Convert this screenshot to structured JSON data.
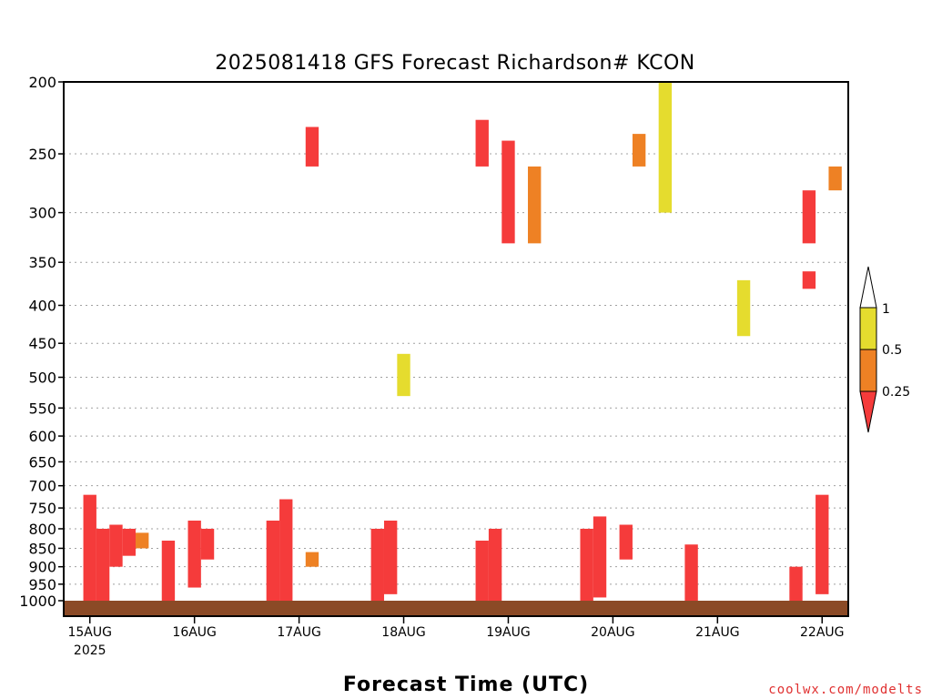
{
  "chart_data": {
    "type": "heatmap",
    "title": "2025081418 GFS Forecast Richardson# KCON",
    "xlabel": "Forecast Time (UTC)",
    "ylabel": "",
    "x_axis": {
      "range": [
        "2025-08-14T18:00",
        "2025-08-22T06:00"
      ],
      "ticks": [
        {
          "date": "2025-08-15T00:00",
          "label": "15AUG",
          "sublabel": "2025"
        },
        {
          "date": "2025-08-16T00:00",
          "label": "16AUG",
          "sublabel": ""
        },
        {
          "date": "2025-08-17T00:00",
          "label": "17AUG",
          "sublabel": ""
        },
        {
          "date": "2025-08-18T00:00",
          "label": "18AUG",
          "sublabel": ""
        },
        {
          "date": "2025-08-19T00:00",
          "label": "19AUG",
          "sublabel": ""
        },
        {
          "date": "2025-08-20T00:00",
          "label": "20AUG",
          "sublabel": ""
        },
        {
          "date": "2025-08-21T00:00",
          "label": "21AUG",
          "sublabel": ""
        },
        {
          "date": "2025-08-22T00:00",
          "label": "22AUG",
          "sublabel": ""
        }
      ]
    },
    "y_axis": {
      "scale": "log",
      "reversed": true,
      "range": [
        1000,
        200
      ],
      "units": "hPa",
      "ticks": [
        200,
        250,
        300,
        350,
        400,
        450,
        500,
        550,
        600,
        650,
        700,
        750,
        800,
        850,
        900,
        950,
        1000
      ]
    },
    "grid": true,
    "colorbar": {
      "placement": "right",
      "bins": [
        {
          "range": [
            0.5,
            1
          ],
          "color": "#e5dc2e"
        },
        {
          "range": [
            0.25,
            0.5
          ],
          "color": "#ee8124"
        },
        {
          "range": [
            0,
            0.25
          ],
          "color": "#f53b3b"
        }
      ],
      "labels": [
        "1",
        "0.5",
        "0.25"
      ]
    },
    "ground_color": "#8b4a26",
    "categories": [
      "0.5-1",
      "0.25-0.5",
      "<0.25"
    ],
    "cells": [
      {
        "t": "2025-08-15T00:00",
        "p": [
          720,
          1000
        ],
        "ri": 0.1
      },
      {
        "t": "2025-08-15T03:00",
        "p": [
          800,
          1000
        ],
        "ri": 0.1
      },
      {
        "t": "2025-08-15T06:00",
        "p": [
          790,
          900
        ],
        "ri": 0.1
      },
      {
        "t": "2025-08-15T09:00",
        "p": [
          800,
          870
        ],
        "ri": 0.1
      },
      {
        "t": "2025-08-15T12:00",
        "p": [
          810,
          850
        ],
        "ri": 0.4
      },
      {
        "t": "2025-08-15T18:00",
        "p": [
          830,
          1000
        ],
        "ri": 0.1
      },
      {
        "t": "2025-08-16T00:00",
        "p": [
          780,
          960
        ],
        "ri": 0.1
      },
      {
        "t": "2025-08-16T03:00",
        "p": [
          800,
          880
        ],
        "ri": 0.1
      },
      {
        "t": "2025-08-16T18:00",
        "p": [
          780,
          1000
        ],
        "ri": 0.1
      },
      {
        "t": "2025-08-16T21:00",
        "p": [
          730,
          1000
        ],
        "ri": 0.1
      },
      {
        "t": "2025-08-17T03:00",
        "p": [
          860,
          900
        ],
        "ri": 0.4
      },
      {
        "t": "2025-08-17T18:00",
        "p": [
          800,
          1000
        ],
        "ri": 0.1
      },
      {
        "t": "2025-08-17T21:00",
        "p": [
          780,
          980
        ],
        "ri": 0.1
      },
      {
        "t": "2025-08-18T18:00",
        "p": [
          830,
          1000
        ],
        "ri": 0.1
      },
      {
        "t": "2025-08-18T21:00",
        "p": [
          800,
          1000
        ],
        "ri": 0.1
      },
      {
        "t": "2025-08-19T18:00",
        "p": [
          800,
          1000
        ],
        "ri": 0.1
      },
      {
        "t": "2025-08-19T21:00",
        "p": [
          770,
          990
        ],
        "ri": 0.1
      },
      {
        "t": "2025-08-20T03:00",
        "p": [
          790,
          880
        ],
        "ri": 0.1
      },
      {
        "t": "2025-08-20T18:00",
        "p": [
          840,
          1000
        ],
        "ri": 0.1
      },
      {
        "t": "2025-08-21T18:00",
        "p": [
          900,
          1000
        ],
        "ri": 0.1
      },
      {
        "t": "2025-08-22T00:00",
        "p": [
          720,
          980
        ],
        "ri": 0.1
      },
      {
        "t": "2025-08-17T03:00",
        "p": [
          230,
          260
        ],
        "ri": 0.1
      },
      {
        "t": "2025-08-18T18:00",
        "p": [
          225,
          260
        ],
        "ri": 0.1
      },
      {
        "t": "2025-08-19T00:00",
        "p": [
          240,
          330
        ],
        "ri": 0.1
      },
      {
        "t": "2025-08-21T21:00",
        "p": [
          280,
          330
        ],
        "ri": 0.1
      },
      {
        "t": "2025-08-21T21:00",
        "p": [
          360,
          380
        ],
        "ri": 0.1
      },
      {
        "t": "2025-08-19T06:00",
        "p": [
          260,
          330
        ],
        "ri": 0.4
      },
      {
        "t": "2025-08-20T06:00",
        "p": [
          235,
          260
        ],
        "ri": 0.4
      },
      {
        "t": "2025-08-22T03:00",
        "p": [
          260,
          280
        ],
        "ri": 0.4
      },
      {
        "t": "2025-08-20T12:00",
        "p": [
          200,
          300
        ],
        "ri": 0.7
      },
      {
        "t": "2025-08-21T06:00",
        "p": [
          370,
          440
        ],
        "ri": 0.7
      },
      {
        "t": "2025-08-18T00:00",
        "p": [
          465,
          530
        ],
        "ri": 0.7
      }
    ]
  },
  "credit": "coolwx.com/modelts"
}
